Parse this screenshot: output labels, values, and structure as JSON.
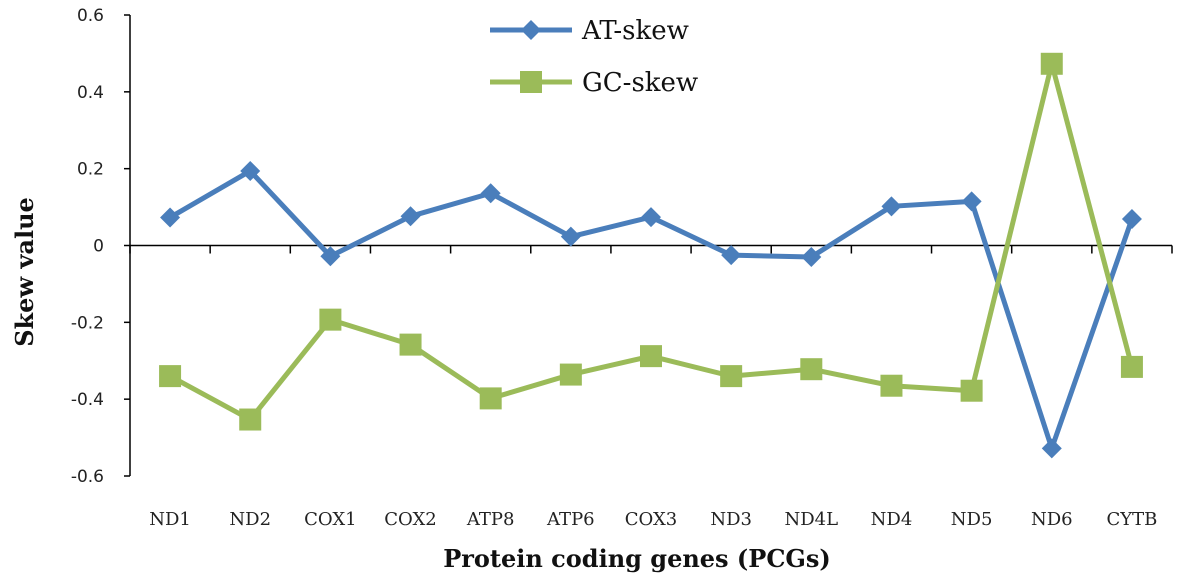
{
  "chart_data": {
    "type": "line",
    "title": "",
    "xlabel": "Protein coding genes (PCGs)",
    "ylabel": "Skew value",
    "categories": [
      "ND1",
      "ND2",
      "COX1",
      "COX2",
      "ATP8",
      "ATP6",
      "COX3",
      "ND3",
      "ND4L",
      "ND4",
      "ND5",
      "ND6",
      "CYTB"
    ],
    "ylim": [
      -0.6,
      0.6
    ],
    "yticks": [
      "0.6",
      "0.4",
      "0.2",
      "0",
      "-0.2",
      "-0.4",
      "-0.6"
    ],
    "legend_position": "top-center",
    "grid": false,
    "series": [
      {
        "name": "AT-skew",
        "color": "#4a7ebb",
        "marker": "diamond",
        "values": [
          0.073,
          0.194,
          -0.028,
          0.076,
          0.136,
          0.023,
          0.074,
          -0.025,
          -0.03,
          0.102,
          0.115,
          -0.528,
          0.069
        ]
      },
      {
        "name": "GC-skew",
        "color": "#9bbb59",
        "marker": "square",
        "values": [
          -0.34,
          -0.453,
          -0.193,
          -0.258,
          -0.398,
          -0.336,
          -0.288,
          -0.34,
          -0.322,
          -0.365,
          -0.378,
          0.473,
          -0.316
        ]
      }
    ]
  }
}
